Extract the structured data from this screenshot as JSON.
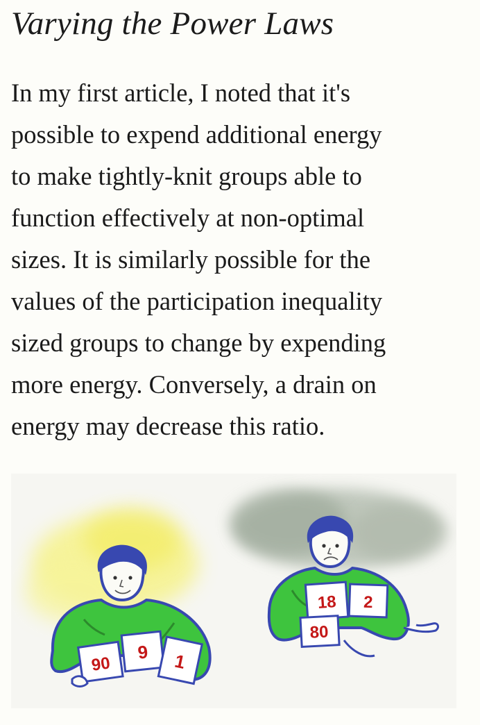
{
  "article": {
    "heading": "Varying the Power Laws",
    "body_lines": [
      "In my first article, I noted that it's",
      "possible to expend additional energy",
      "to make tightly-knit groups able to",
      "function effectively at non-optimal",
      "sizes. It is similarly possible for the",
      "values of the participation inequality",
      "sized groups to change by expending",
      "more energy. Conversely, a drain on",
      "energy may decrease this ratio."
    ]
  },
  "illustration": {
    "left_figure": {
      "aura": "sun-glow",
      "cards": [
        "90",
        "9",
        "1"
      ]
    },
    "right_figure": {
      "aura": "storm-cloud",
      "cards": [
        "18",
        "2",
        "80"
      ]
    },
    "colors": {
      "shirt": "#3dc23d",
      "outline": "#3848b0",
      "card_numbers": "#c41818",
      "glow": "#f4f080",
      "cloud": "#9aa89a"
    }
  }
}
